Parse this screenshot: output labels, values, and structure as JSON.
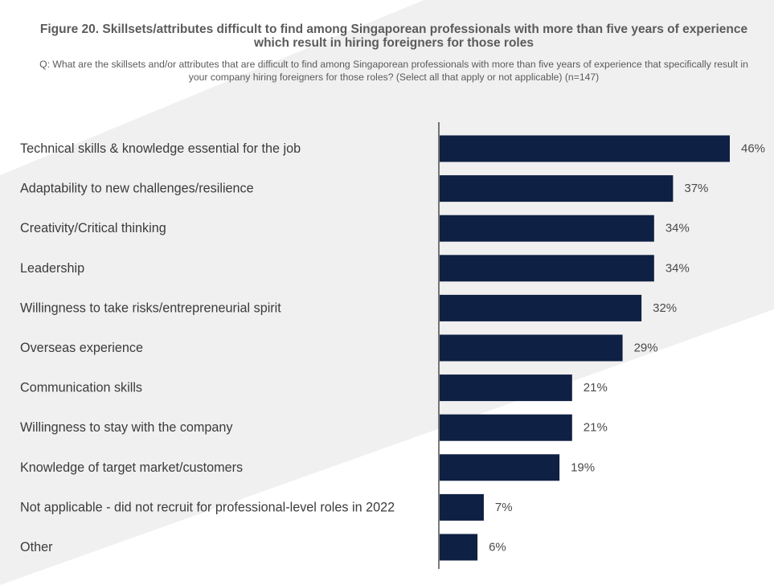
{
  "chart_data": {
    "type": "bar",
    "orientation": "horizontal",
    "title": "Figure 20. Skillsets/attributes difficult to find among Singaporean professionals with more than five years of experience which result in hiring foreigners for those roles",
    "subtitle": "Q: What are the skillsets and/or attributes that are difficult to find among Singaporean professionals with more than five years of experience that specifically result in your company hiring foreigners for those roles? (Select all that apply or not applicable) (n=147)",
    "categories": [
      "Technical skills & knowledge essential for the job",
      "Adaptability to new challenges/resilience",
      "Creativity/Critical thinking",
      "Leadership",
      "Willingness to take risks/entrepreneurial spirit",
      "Overseas experience",
      "Communication skills",
      "Willingness to stay with the company",
      "Knowledge of target market/customers",
      "Not applicable - did not recruit for professional-level roles in 2022",
      "Other"
    ],
    "values": [
      46,
      37,
      34,
      34,
      32,
      29,
      21,
      21,
      19,
      7,
      6
    ],
    "value_labels": [
      "46%",
      "37%",
      "34%",
      "34%",
      "32%",
      "29%",
      "21%",
      "21%",
      "19%",
      "7%",
      "6%"
    ],
    "unit": "%",
    "xlim": [
      0,
      50
    ],
    "grid": false,
    "legend": "none",
    "colors": {
      "bar": "#0e2043",
      "axis": "#333333",
      "background_band": "#f0f0f0"
    }
  }
}
